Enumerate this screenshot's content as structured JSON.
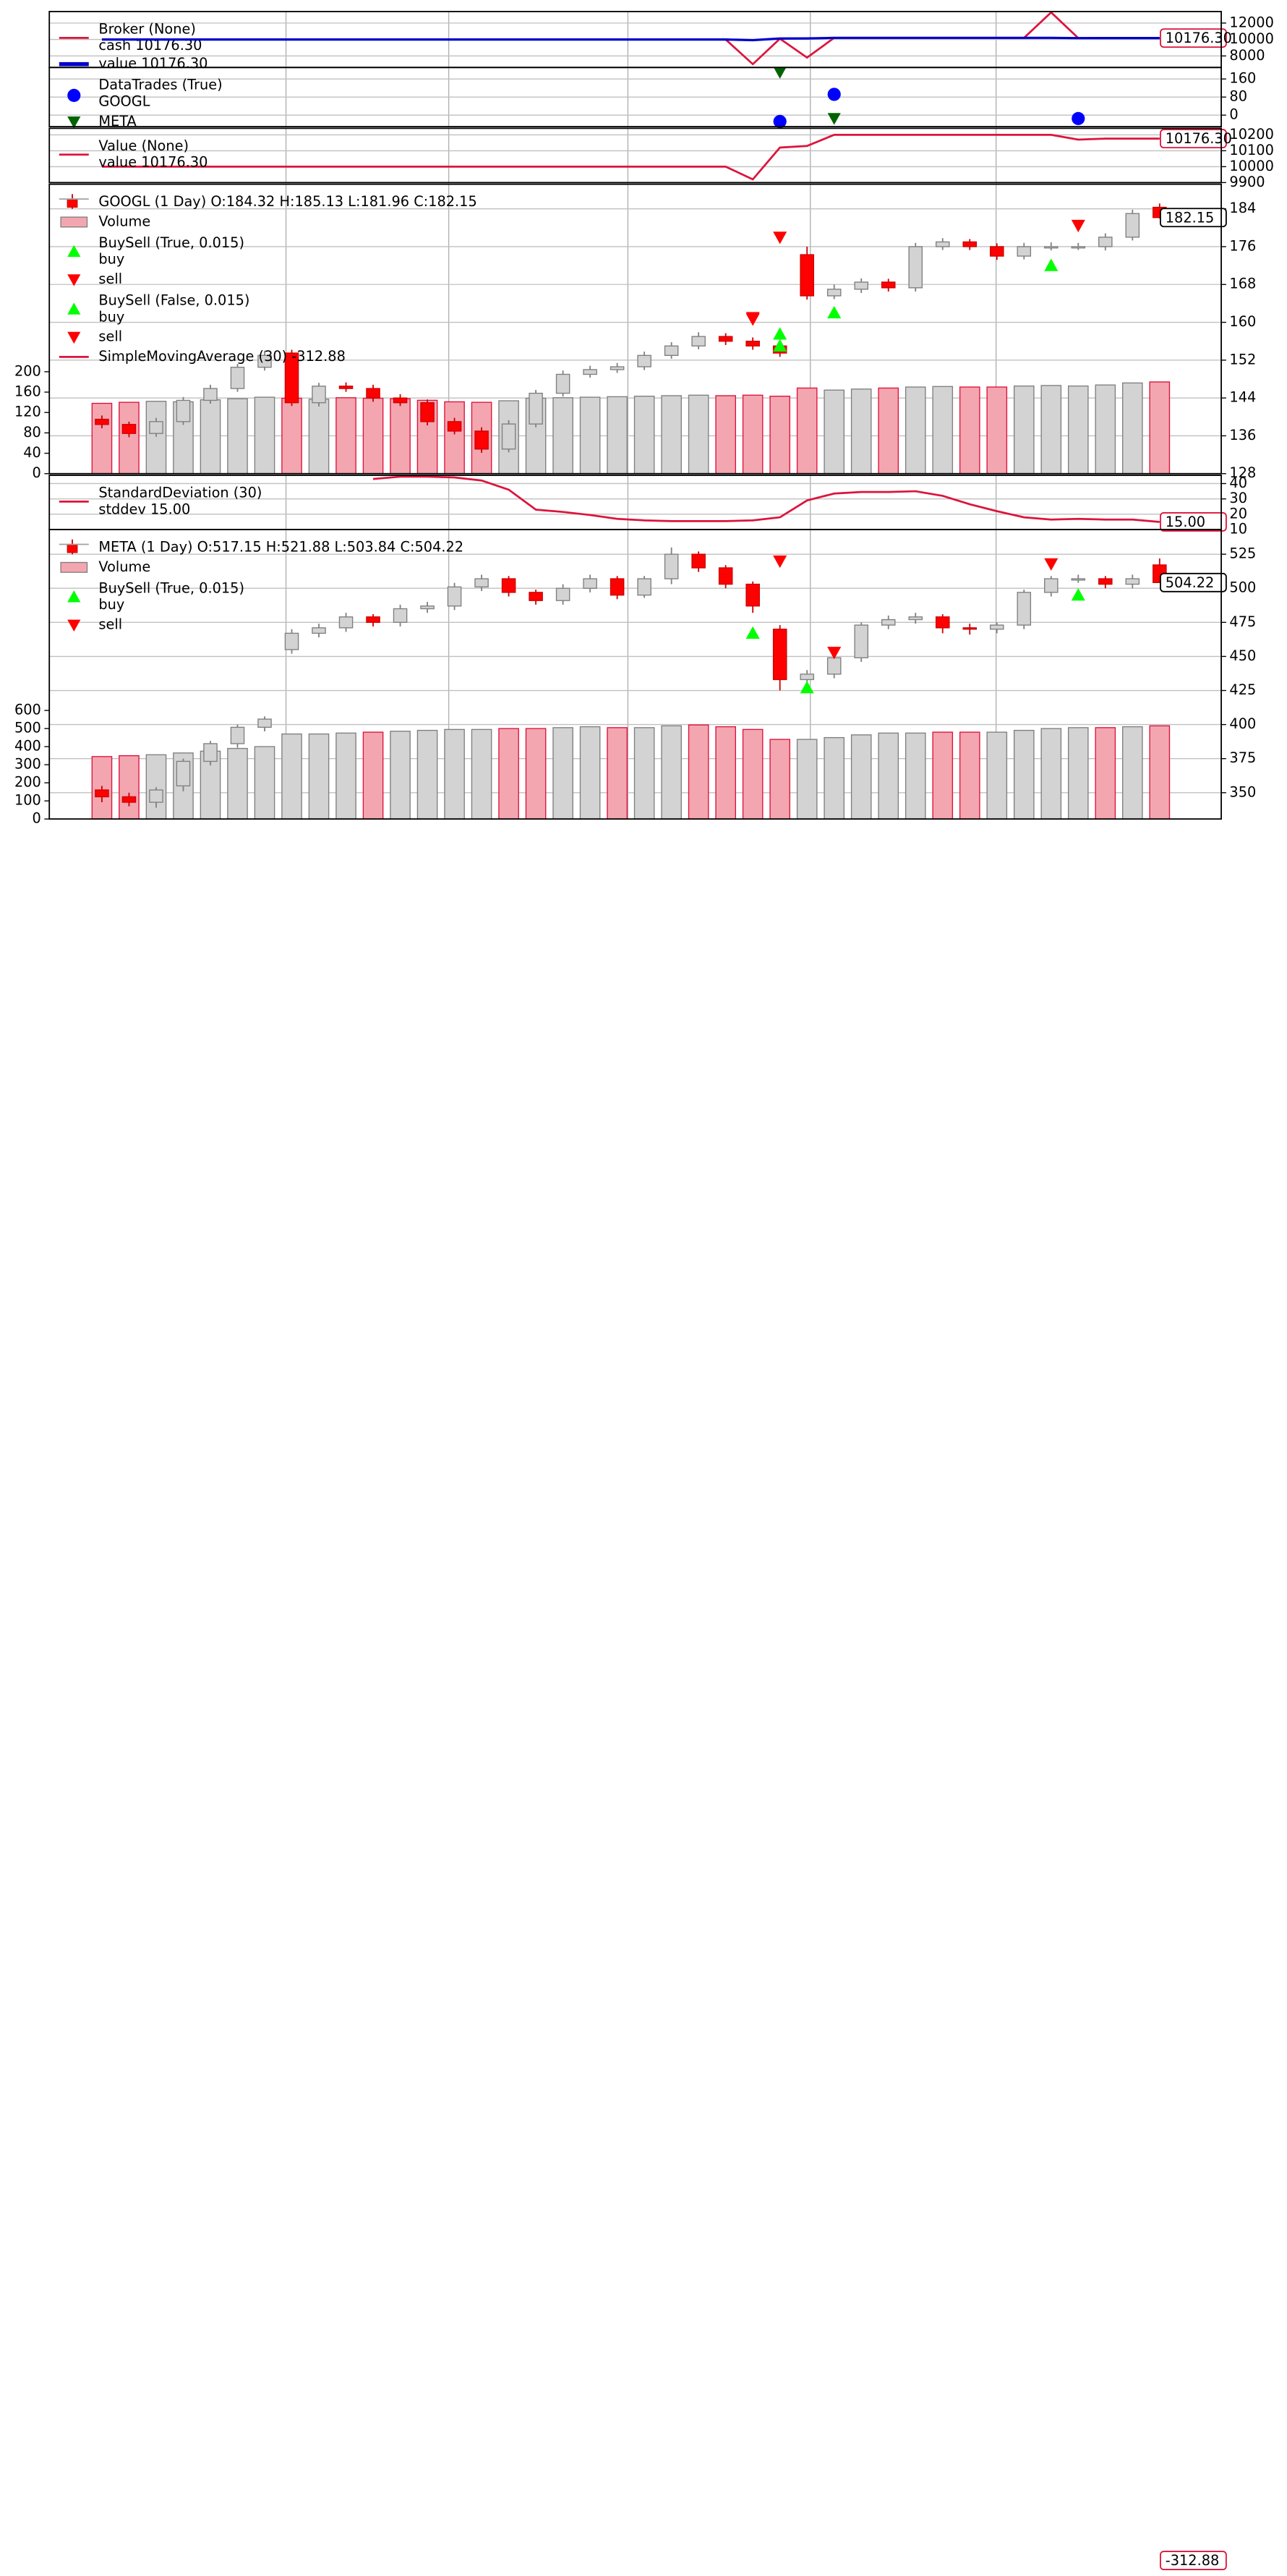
{
  "chart_data": [
    {
      "type": "line",
      "title": "Broker (None)",
      "ylim": [
        6600,
        13400
      ],
      "yticks": [
        8000,
        10000,
        12000
      ],
      "series": [
        {
          "name": "cash 10176.30",
          "color": "#dc143c",
          "last_label": "10176.30",
          "values": [
            10000,
            10000,
            10000,
            10000,
            10000,
            10000,
            10000,
            10000,
            10000,
            10000,
            10000,
            10000,
            10000,
            10000,
            10000,
            10000,
            10000,
            10000,
            10000,
            10000,
            10000,
            10000,
            10000,
            10000,
            7000,
            10100,
            7800,
            10200,
            10200,
            10200,
            10200,
            10200,
            10200,
            10200,
            10200,
            13300,
            10176.3,
            10176.3,
            10176.3,
            10176.3
          ]
        },
        {
          "name": "value 10176.30",
          "color": "#0000cd",
          "values": [
            10000,
            10000,
            10000,
            10000,
            10000,
            10000,
            10000,
            10000,
            10000,
            10000,
            10000,
            10000,
            10000,
            10000,
            10000,
            10000,
            10000,
            10000,
            10000,
            10000,
            10000,
            10000,
            10000,
            10000,
            9920,
            10120,
            10130,
            10200,
            10200,
            10200,
            10200,
            10200,
            10200,
            10200,
            10200,
            10200,
            10170,
            10176,
            10176,
            10176.3
          ]
        }
      ]
    },
    {
      "type": "scatter",
      "title": "DataTrades (True)",
      "ylim": [
        -51,
        211
      ],
      "yticks": [
        0,
        80,
        160
      ],
      "series": [
        {
          "name": "GOOGL",
          "color": "#0000ff",
          "marker": "o",
          "x": [
            25,
            27,
            36
          ],
          "values": [
            -28,
            92,
            -15
          ]
        },
        {
          "name": "META",
          "color": "#006400",
          "marker": "v",
          "x": [
            25,
            27
          ],
          "values": [
            190,
            -14
          ]
        }
      ]
    },
    {
      "type": "line",
      "title": "Value (None)",
      "ylim": [
        9900,
        10241
      ],
      "yticks": [
        9900,
        10000,
        10100,
        10200
      ],
      "series": [
        {
          "name": "value 10176.30",
          "color": "#dc143c",
          "last_label": "10176.30",
          "values": [
            10000,
            10000,
            10000,
            10000,
            10000,
            10000,
            10000,
            10000,
            10000,
            10000,
            10000,
            10000,
            10000,
            10000,
            10000,
            10000,
            10000,
            10000,
            10000,
            10000,
            10000,
            10000,
            10000,
            10000,
            9920,
            10120,
            10130,
            10200,
            10200,
            10200,
            10200,
            10200,
            10200,
            10200,
            10200,
            10200,
            10170,
            10176,
            10176,
            10176.3
          ]
        }
      ]
    },
    {
      "type": "candlestick",
      "title": "GOOGL (1 Day) O:184.32 H:185.13 L:181.96 C:182.15",
      "last_label": "182.15",
      "ylim": [
        128,
        189.2
      ],
      "yticks": [
        128,
        136,
        144,
        152,
        160,
        168,
        176,
        184
      ],
      "up_color": "#d3d3d3",
      "down_color": "#ff0000",
      "volume_up_color": "#d3d3d3",
      "volume_down_color": "#f4a6b0",
      "open": [
        139.5,
        138.4,
        136.5,
        139,
        143.5,
        146,
        150.5,
        153.5,
        143,
        146.5,
        146,
        144,
        143,
        139,
        137,
        133.2,
        138.5,
        145,
        149,
        150,
        150.6,
        153,
        155,
        157,
        156,
        155,
        174.3,
        165.6,
        167,
        168.5,
        167.3,
        176,
        177,
        176,
        174,
        176,
        176,
        176,
        178,
        184.32
      ],
      "high": [
        140.3,
        139,
        139.8,
        144.2,
        146.8,
        151.2,
        154,
        154.2,
        147.2,
        147.3,
        146.8,
        144.8,
        143.7,
        139.8,
        137.8,
        139.3,
        145.7,
        149.8,
        150.8,
        151.4,
        153.8,
        155.8,
        157.9,
        157.7,
        156.8,
        155.8,
        176,
        168,
        169.3,
        169.2,
        176.8,
        177.8,
        177.6,
        176.7,
        176.8,
        176.9,
        176.8,
        178.8,
        183.8,
        185.13
      ],
      "low": [
        137.6,
        135.7,
        135.8,
        138.3,
        142.8,
        145.3,
        149.8,
        142.3,
        142.2,
        145.3,
        143.2,
        142.3,
        138.2,
        136.3,
        132.4,
        132.5,
        137.8,
        144.3,
        148.3,
        149.3,
        149.9,
        152.3,
        154.3,
        155.2,
        154.2,
        152.7,
        164.8,
        164.9,
        166.2,
        166.5,
        166.5,
        175.3,
        175.3,
        173.2,
        173.3,
        175.2,
        175.3,
        175.2,
        177.3,
        181.96
      ],
      "close": [
        138.4,
        136.5,
        139,
        143.5,
        146,
        150.5,
        153,
        143,
        146.5,
        146,
        144,
        143,
        139,
        137,
        133.2,
        138.5,
        145,
        149,
        150,
        150.6,
        153,
        155,
        157,
        156,
        155,
        153.5,
        165.6,
        167,
        168.5,
        167.3,
        176,
        177,
        176,
        174,
        176,
        176,
        176,
        178,
        183,
        182.15
      ],
      "volume_name": "Volume",
      "volume": [
        138,
        140,
        142,
        141,
        145,
        147,
        150,
        148,
        146,
        149,
        148,
        147,
        144,
        141,
        140,
        143,
        148,
        149,
        150,
        151,
        152,
        153,
        154,
        153,
        154,
        152,
        168,
        164,
        166,
        168,
        170,
        171,
        170,
        170,
        172,
        173,
        172,
        174,
        178,
        180
      ],
      "vlim": [
        0,
        568
      ],
      "vticks": [
        0,
        40,
        80,
        120,
        160,
        200
      ],
      "overlays": [
        {
          "title": "BuySell (True, 0.015)",
          "series": [
            {
              "name": "buy",
              "marker": "^",
              "color": "#00ff00",
              "x": [
                25,
                27,
                35
              ],
              "values": [
                155,
                162,
                172
              ]
            },
            {
              "name": "sell",
              "marker": "v",
              "color": "#ff0000",
              "x": [
                24,
                25,
                36
              ],
              "values": [
                160.7,
                178,
                180.5
              ]
            }
          ]
        },
        {
          "title": "BuySell (False, 0.015)",
          "series": [
            {
              "name": "buy",
              "marker": "^",
              "color": "#00ff00",
              "x": [
                25
              ],
              "values": [
                157.5
              ]
            },
            {
              "name": "sell",
              "marker": "v",
              "color": "#ff0000",
              "x": [
                24
              ],
              "values": [
                161
              ]
            }
          ]
        }
      ],
      "lines": [
        {
          "name": "SimpleMovingAverage (30) -312.88",
          "color": "#dc143c",
          "last_label": "-312.88"
        }
      ]
    },
    {
      "type": "line",
      "title": "StandardDeviation (30)",
      "ylim": [
        10,
        45.4
      ],
      "yticks": [
        10,
        20,
        30,
        40
      ],
      "series": [
        {
          "name": "stddev 15.00",
          "color": "#dc143c",
          "last_label": "15.00",
          "values": [
            null,
            null,
            null,
            null,
            null,
            null,
            null,
            null,
            null,
            null,
            43,
            44.5,
            44.5,
            44,
            42,
            36,
            23,
            21.5,
            19.5,
            17,
            16,
            15.5,
            15.5,
            15.5,
            16,
            18,
            29,
            33.5,
            34.5,
            34.5,
            35,
            32,
            26.5,
            22,
            18,
            16.5,
            17,
            16.5,
            16.5,
            15
          ]
        }
      ]
    },
    {
      "type": "candlestick",
      "title": "META (1 Day) O:517.15 H:521.88 L:503.84 C:504.22",
      "last_label": "504.22",
      "ylim": [
        330.7,
        543.1
      ],
      "yticks": [
        350,
        375,
        400,
        425,
        450,
        475,
        500,
        525
      ],
      "up_color": "#d3d3d3",
      "down_color": "#ff0000",
      "volume_up_color": "#d3d3d3",
      "volume_down_color": "#f4a6b0",
      "open": [
        352,
        347,
        343,
        355,
        373,
        386,
        398,
        455,
        467,
        471,
        479,
        475,
        485,
        487,
        501,
        507,
        497,
        491,
        500,
        507,
        495,
        507,
        525,
        515,
        503,
        470,
        433,
        437,
        449,
        473,
        477,
        479,
        471,
        470,
        473,
        497,
        507,
        507,
        503,
        517.15
      ],
      "high": [
        355,
        350,
        354,
        375,
        388,
        400,
        406,
        470,
        474,
        482,
        481,
        488,
        490,
        504,
        510,
        509,
        499,
        503,
        510,
        509,
        509,
        530,
        527,
        517,
        505,
        473,
        440,
        452,
        475,
        480,
        482,
        481,
        474,
        475,
        499,
        509,
        510,
        509,
        510,
        521.88
      ],
      "low": [
        343,
        340,
        339,
        351,
        370,
        383,
        395,
        452,
        464,
        468,
        472,
        472,
        482,
        484,
        498,
        494,
        488,
        488,
        497,
        492,
        493,
        503,
        512,
        500,
        482,
        425,
        430,
        434,
        446,
        470,
        474,
        467,
        466,
        467,
        470,
        494,
        504,
        500,
        500,
        503.84
      ],
      "close": [
        347,
        343,
        352,
        373,
        386,
        398,
        404,
        467,
        471,
        479,
        475,
        485,
        487,
        501,
        507,
        497,
        491,
        500,
        507,
        495,
        507,
        525,
        515,
        503,
        487,
        433,
        437,
        449,
        473,
        477,
        479,
        471,
        470,
        473,
        497,
        507,
        507,
        503,
        507,
        504.22
      ],
      "volume_name": "Volume",
      "volume": [
        345,
        350,
        355,
        365,
        375,
        390,
        400,
        470,
        470,
        475,
        480,
        485,
        490,
        495,
        495,
        500,
        500,
        505,
        510,
        505,
        505,
        515,
        520,
        510,
        495,
        440,
        440,
        450,
        465,
        475,
        475,
        480,
        480,
        480,
        490,
        500,
        505,
        505,
        510,
        515
      ],
      "vlim": [
        0,
        1600
      ],
      "vticks": [
        0,
        100,
        200,
        300,
        400,
        500,
        600
      ],
      "overlays": [
        {
          "title": "BuySell (True, 0.015)",
          "series": [
            {
              "name": "buy",
              "marker": "^",
              "color": "#00ff00",
              "x": [
                24,
                26,
                36
              ],
              "values": [
                467,
                427,
                495
              ]
            },
            {
              "name": "sell",
              "marker": "v",
              "color": "#ff0000",
              "x": [
                25,
                27,
                35
              ],
              "values": [
                520,
                453,
                518
              ]
            }
          ]
        }
      ],
      "lines": []
    }
  ]
}
